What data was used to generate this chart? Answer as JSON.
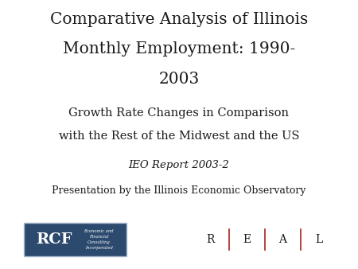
{
  "title_line1": "Comparative Analysis of Illinois",
  "title_line2": "Monthly Employment: 1990-",
  "title_line3": "2003",
  "subtitle_line1": "Growth Rate Changes in Comparison",
  "subtitle_line2": "with the Rest of the Midwest and the US",
  "report_line": "IEO Report 2003-2",
  "presentation_line": "Presentation by the Illinois Economic Observatory",
  "rcf_subtext": "Economic and\nFinancial\nConsulting\nIncorporated",
  "background_color": "#ffffff",
  "text_color": "#1a1a1a",
  "rcf_bg_color": "#2c4a6e",
  "rcf_text_color": "#ffffff",
  "real_separator_color": "#aa2222",
  "title_fontsize": 14.5,
  "subtitle_fontsize": 10.5,
  "report_fontsize": 9.5,
  "presentation_fontsize": 9.0,
  "rcf_big_fontsize": 14,
  "rcf_small_fontsize": 3.8,
  "real_fontsize": 10
}
